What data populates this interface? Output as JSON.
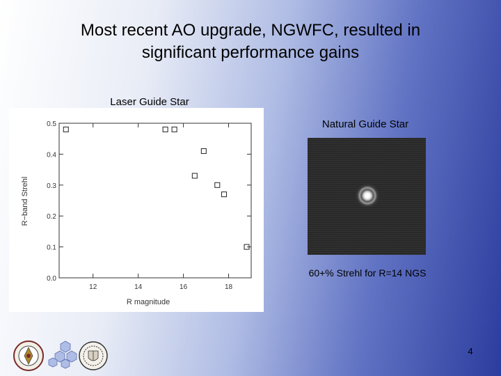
{
  "slide": {
    "title_line1": "Most recent AO upgrade, NGWFC, resulted in",
    "title_line2": "significant performance gains",
    "page_number": "4"
  },
  "lgs": {
    "label": "Laser Guide Star"
  },
  "ngs": {
    "label": "Natural Guide Star",
    "caption": "60+% Strehl for R=14 NGS"
  },
  "logos": [
    "university-seal-icon",
    "hexagon-mirror-icon",
    "institution-crest-icon"
  ],
  "chart_data": {
    "type": "scatter",
    "xlabel": "R magnitude",
    "ylabel": "R−band Strehl",
    "xlim": [
      10.5,
      19.0
    ],
    "ylim": [
      0.0,
      0.5
    ],
    "xticks": [
      12,
      14,
      16,
      18
    ],
    "xtick_labels": [
      "12",
      "14",
      "16",
      "18"
    ],
    "yticks": [
      0.0,
      0.1,
      0.2,
      0.3,
      0.4,
      0.5
    ],
    "ytick_labels": [
      "0.0",
      "0.1",
      "0.2",
      "0.3",
      "0.4",
      "0.5"
    ],
    "marker": "square-open",
    "points": [
      {
        "x": 10.8,
        "y": 0.48
      },
      {
        "x": 15.2,
        "y": 0.48
      },
      {
        "x": 15.6,
        "y": 0.48
      },
      {
        "x": 16.5,
        "y": 0.33
      },
      {
        "x": 16.9,
        "y": 0.41
      },
      {
        "x": 17.5,
        "y": 0.3
      },
      {
        "x": 17.8,
        "y": 0.27
      },
      {
        "x": 18.8,
        "y": 0.1
      }
    ],
    "grid": false,
    "legend": "none"
  }
}
